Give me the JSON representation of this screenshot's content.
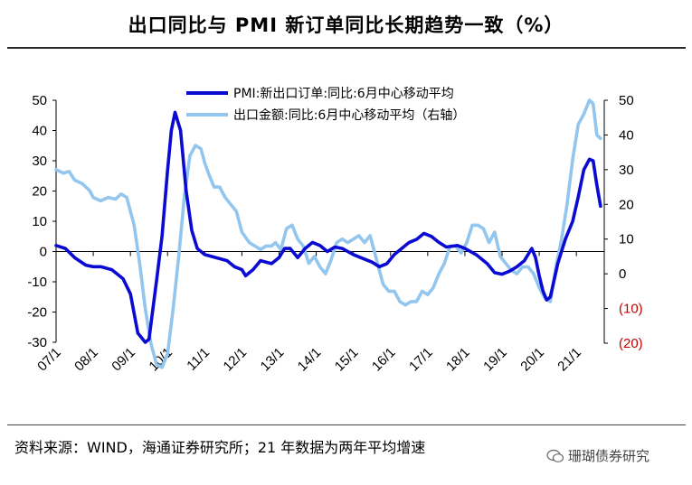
{
  "title": "出口同比与 PMI 新订单同比长期趋势一致（%）",
  "source": "资料来源：WIND，海通证券研究所；21 年数据为两年平均增速",
  "watermark": "珊瑚债券研究",
  "colors": {
    "pmi": "#0a0ad2",
    "export": "#93c6ee",
    "negative_axis": "#c00000"
  },
  "chart_data": {
    "type": "line",
    "title": "出口同比与 PMI 新订单同比长期趋势一致（%）",
    "x": [
      "07/1",
      "08/1",
      "09/1",
      "10/1",
      "11/1",
      "12/1",
      "13/1",
      "14/1",
      "15/1",
      "16/1",
      "17/1",
      "18/1",
      "19/1",
      "20/1",
      "21/1"
    ],
    "ylim_left": [
      -30,
      50
    ],
    "ylim_right": [
      -20,
      50
    ],
    "left_ticks": [
      "50",
      "40",
      "30",
      "20",
      "10",
      "0",
      "-10",
      "-20",
      "-30"
    ],
    "left_tick_values": [
      50,
      40,
      30,
      20,
      10,
      0,
      -10,
      -20,
      -30
    ],
    "right_ticks": [
      "50",
      "40",
      "30",
      "20",
      "10",
      "0",
      "(10)",
      "(20)"
    ],
    "right_tick_values": [
      50,
      40,
      30,
      20,
      10,
      0,
      -10,
      -20
    ],
    "series": [
      {
        "name": "PMI:新出口订单:同比:6月中心移动平均",
        "axis": "left",
        "points": [
          [
            0,
            2
          ],
          [
            0.25,
            1
          ],
          [
            0.5,
            -2
          ],
          [
            0.8,
            -4.5
          ],
          [
            1,
            -5
          ],
          [
            1.2,
            -5
          ],
          [
            1.5,
            -6
          ],
          [
            1.8,
            -9
          ],
          [
            2.0,
            -14
          ],
          [
            2.2,
            -27
          ],
          [
            2.4,
            -30
          ],
          [
            2.5,
            -29
          ],
          [
            2.7,
            -10
          ],
          [
            2.85,
            5
          ],
          [
            3.0,
            27
          ],
          [
            3.1,
            40
          ],
          [
            3.2,
            46
          ],
          [
            3.35,
            40
          ],
          [
            3.5,
            20
          ],
          [
            3.65,
            7
          ],
          [
            3.8,
            1
          ],
          [
            4.0,
            -1
          ],
          [
            4.3,
            -2
          ],
          [
            4.6,
            -3
          ],
          [
            4.8,
            -5
          ],
          [
            5.0,
            -6
          ],
          [
            5.1,
            -8
          ],
          [
            5.3,
            -6
          ],
          [
            5.5,
            -3
          ],
          [
            5.8,
            -4
          ],
          [
            6.0,
            -2
          ],
          [
            6.15,
            1
          ],
          [
            6.3,
            1
          ],
          [
            6.5,
            -2
          ],
          [
            6.7,
            1
          ],
          [
            6.9,
            3
          ],
          [
            7.1,
            2
          ],
          [
            7.3,
            0
          ],
          [
            7.5,
            1.5
          ],
          [
            7.7,
            1
          ],
          [
            8.0,
            -1
          ],
          [
            8.3,
            -2.5
          ],
          [
            8.5,
            -3.5
          ],
          [
            8.7,
            -5
          ],
          [
            8.9,
            -4
          ],
          [
            9.1,
            -1
          ],
          [
            9.3,
            1
          ],
          [
            9.5,
            3
          ],
          [
            9.7,
            4
          ],
          [
            9.9,
            6
          ],
          [
            10.1,
            5
          ],
          [
            10.3,
            3
          ],
          [
            10.5,
            1.5
          ],
          [
            10.8,
            2
          ],
          [
            11.0,
            1
          ],
          [
            11.3,
            -1
          ],
          [
            11.6,
            -4
          ],
          [
            11.8,
            -7
          ],
          [
            12.0,
            -7.5
          ],
          [
            12.2,
            -6.5
          ],
          [
            12.4,
            -5
          ],
          [
            12.6,
            -3
          ],
          [
            12.8,
            1
          ],
          [
            12.9,
            -2
          ],
          [
            13.0,
            -8
          ],
          [
            13.1,
            -13
          ],
          [
            13.2,
            -16
          ],
          [
            13.3,
            -15
          ],
          [
            13.5,
            -4
          ],
          [
            13.7,
            4
          ],
          [
            13.9,
            10
          ],
          [
            14.05,
            18
          ],
          [
            14.2,
            27
          ],
          [
            14.35,
            30.5
          ],
          [
            14.45,
            30
          ],
          [
            14.55,
            22
          ],
          [
            14.65,
            15
          ]
        ]
      },
      {
        "name": "出口金额:同比:6月中心移动平均（右轴）",
        "axis": "right",
        "points": [
          [
            0,
            30
          ],
          [
            0.2,
            29
          ],
          [
            0.35,
            29.5
          ],
          [
            0.5,
            27
          ],
          [
            0.7,
            26
          ],
          [
            0.9,
            24
          ],
          [
            1.0,
            22
          ],
          [
            1.2,
            21
          ],
          [
            1.4,
            22
          ],
          [
            1.6,
            21.5
          ],
          [
            1.75,
            23
          ],
          [
            1.9,
            22
          ],
          [
            2.1,
            14
          ],
          [
            2.25,
            3
          ],
          [
            2.4,
            -10
          ],
          [
            2.55,
            -20
          ],
          [
            2.7,
            -26
          ],
          [
            2.85,
            -27
          ],
          [
            3.0,
            -23
          ],
          [
            3.15,
            -10
          ],
          [
            3.3,
            5
          ],
          [
            3.45,
            22
          ],
          [
            3.6,
            34
          ],
          [
            3.75,
            37
          ],
          [
            3.9,
            36
          ],
          [
            4.0,
            32
          ],
          [
            4.1,
            29
          ],
          [
            4.25,
            25
          ],
          [
            4.4,
            25
          ],
          [
            4.55,
            22
          ],
          [
            4.7,
            20
          ],
          [
            4.85,
            18
          ],
          [
            5.0,
            12
          ],
          [
            5.2,
            9
          ],
          [
            5.35,
            8
          ],
          [
            5.5,
            7
          ],
          [
            5.65,
            8
          ],
          [
            5.8,
            8
          ],
          [
            5.9,
            9
          ],
          [
            6.05,
            7
          ],
          [
            6.2,
            13
          ],
          [
            6.35,
            14
          ],
          [
            6.5,
            10
          ],
          [
            6.65,
            8
          ],
          [
            6.8,
            3
          ],
          [
            6.95,
            5
          ],
          [
            7.1,
            2
          ],
          [
            7.25,
            0
          ],
          [
            7.4,
            4
          ],
          [
            7.55,
            9
          ],
          [
            7.7,
            10
          ],
          [
            7.85,
            9
          ],
          [
            8.0,
            10
          ],
          [
            8.15,
            11
          ],
          [
            8.3,
            9
          ],
          [
            8.45,
            11
          ],
          [
            8.6,
            5
          ],
          [
            8.8,
            -3
          ],
          [
            8.95,
            -5
          ],
          [
            9.1,
            -5
          ],
          [
            9.25,
            -8
          ],
          [
            9.4,
            -9
          ],
          [
            9.55,
            -8
          ],
          [
            9.7,
            -8
          ],
          [
            9.85,
            -5
          ],
          [
            10.0,
            -6
          ],
          [
            10.15,
            -4
          ],
          [
            10.3,
            0
          ],
          [
            10.45,
            3
          ],
          [
            10.6,
            8
          ],
          [
            10.75,
            8
          ],
          [
            10.9,
            6
          ],
          [
            11.05,
            9
          ],
          [
            11.2,
            14
          ],
          [
            11.35,
            14
          ],
          [
            11.5,
            13
          ],
          [
            11.65,
            9
          ],
          [
            11.8,
            12
          ],
          [
            11.95,
            5
          ],
          [
            12.1,
            3
          ],
          [
            12.25,
            1
          ],
          [
            12.4,
            0
          ],
          [
            12.55,
            2
          ],
          [
            12.7,
            2
          ],
          [
            12.85,
            0
          ],
          [
            13.0,
            -4
          ],
          [
            13.15,
            -7
          ],
          [
            13.3,
            -8
          ],
          [
            13.45,
            2
          ],
          [
            13.6,
            10
          ],
          [
            13.75,
            20
          ],
          [
            13.9,
            33
          ],
          [
            14.05,
            43
          ],
          [
            14.2,
            46
          ],
          [
            14.35,
            50
          ],
          [
            14.45,
            49
          ],
          [
            14.55,
            40
          ],
          [
            14.65,
            39
          ]
        ]
      }
    ],
    "legend": [
      "PMI:新出口订单:同比:6月中心移动平均",
      "出口金额:同比:6月中心移动平均（右轴）"
    ]
  }
}
